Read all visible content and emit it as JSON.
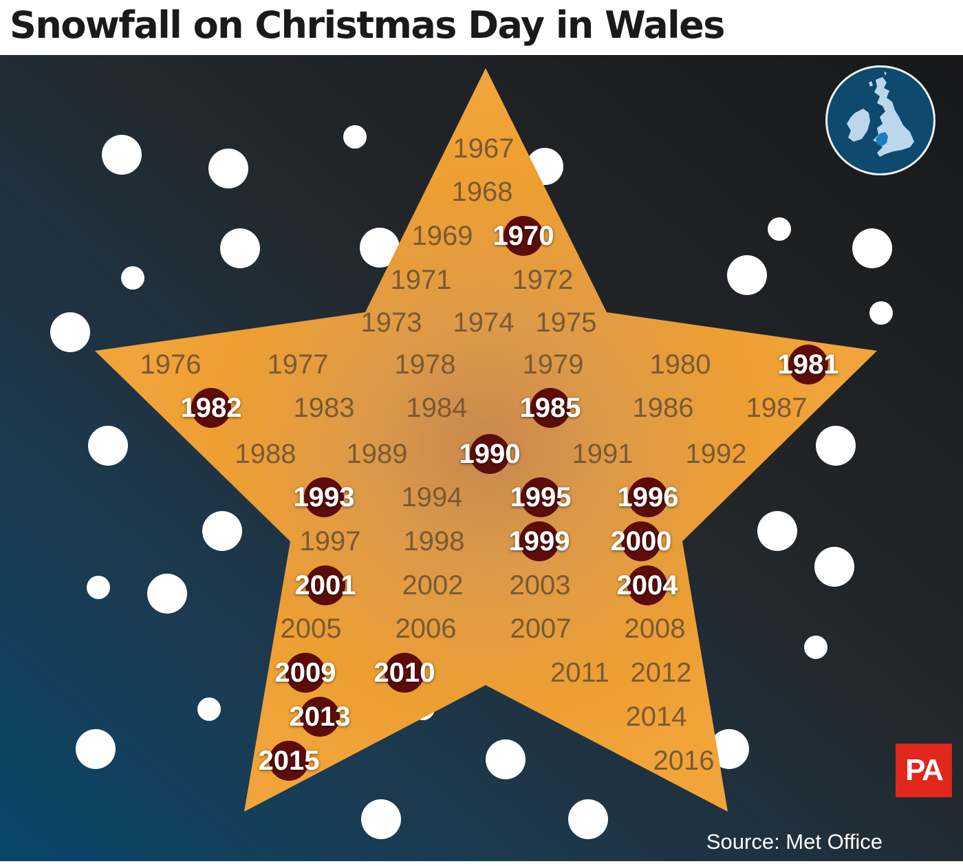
{
  "title": "Snowfall on Christmas Day in Wales",
  "source": "Source: Met Office",
  "logo": "PA",
  "colors": {
    "star": "#f0a43a",
    "snow_marker": "#5c0d0a",
    "no_snow_text": "#7a5a33",
    "snow_text": "#ffffff",
    "highlighted_region": "#1a7bbf"
  },
  "locator_map": {
    "region": "Wales",
    "icon": "uk-ireland-locator-map-icon"
  },
  "chart_data": {
    "type": "table",
    "title": "Snowfall on Christmas Day in Wales",
    "years": [
      1967,
      1968,
      1969,
      1970,
      1971,
      1972,
      1973,
      1974,
      1975,
      1976,
      1977,
      1978,
      1979,
      1980,
      1981,
      1982,
      1983,
      1984,
      1985,
      1986,
      1987,
      1988,
      1989,
      1990,
      1991,
      1992,
      1993,
      1994,
      1995,
      1996,
      1997,
      1998,
      1999,
      2000,
      2001,
      2002,
      2003,
      2004,
      2005,
      2006,
      2007,
      2008,
      2009,
      2010,
      2011,
      2012,
      2013,
      2014,
      2015,
      2016
    ],
    "snow": [
      false,
      false,
      false,
      true,
      false,
      false,
      false,
      false,
      false,
      false,
      false,
      false,
      false,
      false,
      true,
      true,
      false,
      false,
      true,
      false,
      false,
      false,
      false,
      true,
      false,
      false,
      true,
      false,
      true,
      true,
      false,
      false,
      true,
      true,
      true,
      false,
      false,
      true,
      false,
      false,
      false,
      false,
      true,
      true,
      false,
      false,
      true,
      false,
      true,
      false
    ],
    "snow_years": [
      1970,
      1981,
      1982,
      1985,
      1990,
      1993,
      1995,
      1996,
      1999,
      2000,
      2001,
      2004,
      2009,
      2010,
      2013,
      2015
    ]
  }
}
